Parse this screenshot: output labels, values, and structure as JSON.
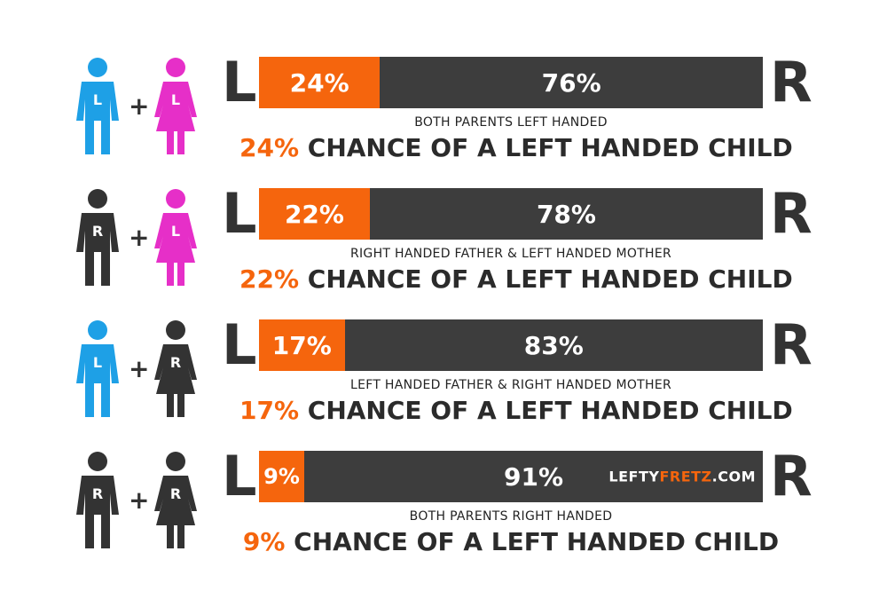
{
  "chart_data": {
    "type": "bar",
    "stacked": true,
    "side_labels": {
      "left": "L",
      "right": "R"
    },
    "rows": [
      {
        "father": {
          "letter": "L",
          "color": "#1ea0e6"
        },
        "mother": {
          "letter": "L",
          "color": "#e62fc8"
        },
        "left_value": 24,
        "right_value": 76,
        "left_label": "24%",
        "right_label": "76%",
        "description": "BOTH PARENTS LEFT HANDED",
        "headline_pct": "24%",
        "headline_text": " CHANCE OF A LEFT HANDED CHILD"
      },
      {
        "father": {
          "letter": "R",
          "color": "#333333"
        },
        "mother": {
          "letter": "L",
          "color": "#e62fc8"
        },
        "left_value": 22,
        "right_value": 78,
        "left_label": "22%",
        "right_label": "78%",
        "description": "RIGHT HANDED FATHER & LEFT HANDED MOTHER",
        "headline_pct": "22%",
        "headline_text": " CHANCE OF A LEFT HANDED CHILD"
      },
      {
        "father": {
          "letter": "L",
          "color": "#1ea0e6"
        },
        "mother": {
          "letter": "R",
          "color": "#333333"
        },
        "left_value": 17,
        "right_value": 83,
        "left_label": "17%",
        "right_label": "83%",
        "description": "LEFT HANDED FATHER & RIGHT HANDED MOTHER",
        "headline_pct": "17%",
        "headline_text": " CHANCE OF A LEFT HANDED CHILD"
      },
      {
        "father": {
          "letter": "R",
          "color": "#333333"
        },
        "mother": {
          "letter": "R",
          "color": "#333333"
        },
        "left_value": 9,
        "right_value": 91,
        "left_label": "9%",
        "right_label": "91%",
        "description": "BOTH PARENTS RIGHT HANDED",
        "headline_pct": "9%",
        "headline_text": " CHANCE OF A LEFT HANDED CHILD",
        "watermark": {
          "part1": "LEFTY",
          "part2": "FRETZ",
          "part3": ".COM"
        }
      }
    ],
    "colors": {
      "left_segment": "#f5650d",
      "right_segment": "#3d3d3d"
    }
  }
}
